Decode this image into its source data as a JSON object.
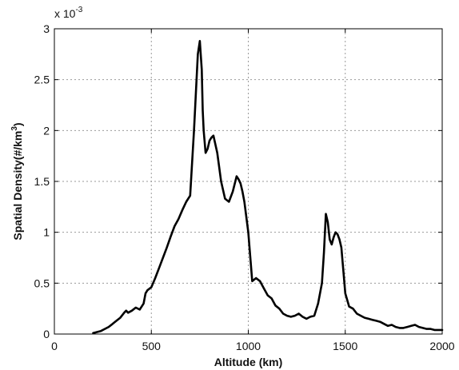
{
  "chart_data": {
    "type": "line",
    "xlabel": "Altitude (km)",
    "ylabel": "Spatial Density(#/km",
    "ylabel_exponent": "3",
    "ylabel_suffix": ")",
    "y_multiplier_base": "x 10",
    "y_multiplier_exponent": "-3",
    "xlim": [
      0,
      2000
    ],
    "ylim": [
      0,
      3
    ],
    "x_ticks": [
      0,
      500,
      1000,
      1500,
      2000
    ],
    "x_tick_labels": [
      "0",
      "500",
      "1000",
      "1500",
      "2000"
    ],
    "y_ticks": [
      0,
      0.5,
      1,
      1.5,
      2,
      2.5,
      3
    ],
    "y_tick_labels": [
      "0",
      "0.5",
      "1",
      "1.5",
      "2",
      "2.5",
      "3"
    ],
    "grid": true,
    "series": [
      {
        "color": "#000000",
        "x": [
          200,
          220,
          240,
          260,
          280,
          300,
          320,
          340,
          360,
          370,
          380,
          400,
          420,
          440,
          460,
          470,
          480,
          500,
          520,
          540,
          560,
          580,
          600,
          620,
          640,
          660,
          680,
          700,
          720,
          740,
          750,
          760,
          765,
          770,
          780,
          790,
          800,
          810,
          820,
          840,
          860,
          880,
          900,
          920,
          940,
          950,
          960,
          970,
          980,
          1000,
          1020,
          1040,
          1060,
          1080,
          1100,
          1120,
          1140,
          1160,
          1180,
          1200,
          1220,
          1240,
          1260,
          1280,
          1300,
          1320,
          1340,
          1360,
          1380,
          1390,
          1400,
          1410,
          1420,
          1430,
          1440,
          1450,
          1460,
          1470,
          1480,
          1500,
          1520,
          1540,
          1560,
          1580,
          1600,
          1620,
          1640,
          1660,
          1680,
          1700,
          1720,
          1740,
          1760,
          1780,
          1800,
          1820,
          1840,
          1860,
          1880,
          1900,
          1920,
          1940,
          1960,
          1980,
          2000
        ],
        "y": [
          0.01,
          0.02,
          0.03,
          0.05,
          0.07,
          0.1,
          0.13,
          0.16,
          0.21,
          0.23,
          0.21,
          0.23,
          0.26,
          0.24,
          0.3,
          0.4,
          0.43,
          0.46,
          0.55,
          0.65,
          0.75,
          0.85,
          0.96,
          1.06,
          1.13,
          1.22,
          1.3,
          1.36,
          2.0,
          2.75,
          2.88,
          2.6,
          2.2,
          2.0,
          1.78,
          1.82,
          1.9,
          1.93,
          1.95,
          1.78,
          1.5,
          1.33,
          1.3,
          1.4,
          1.55,
          1.52,
          1.48,
          1.4,
          1.3,
          1.0,
          0.52,
          0.55,
          0.52,
          0.45,
          0.38,
          0.35,
          0.28,
          0.25,
          0.2,
          0.18,
          0.17,
          0.18,
          0.2,
          0.17,
          0.15,
          0.17,
          0.18,
          0.3,
          0.5,
          0.8,
          1.18,
          1.1,
          0.93,
          0.88,
          0.95,
          1.0,
          0.98,
          0.93,
          0.85,
          0.4,
          0.27,
          0.25,
          0.2,
          0.18,
          0.16,
          0.15,
          0.14,
          0.13,
          0.12,
          0.1,
          0.08,
          0.09,
          0.07,
          0.06,
          0.06,
          0.07,
          0.08,
          0.09,
          0.07,
          0.06,
          0.05,
          0.05,
          0.04,
          0.04,
          0.04
        ]
      }
    ]
  }
}
